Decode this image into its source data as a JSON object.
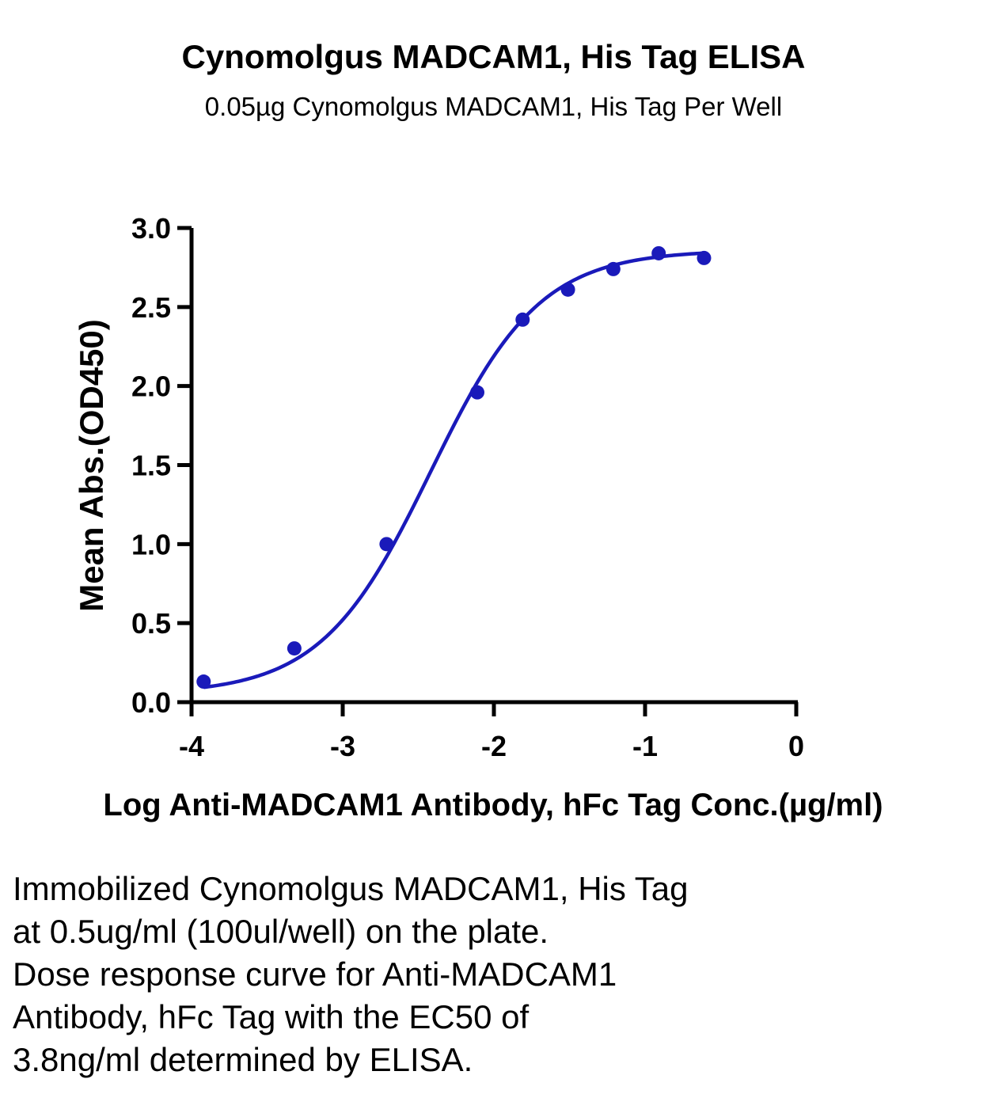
{
  "chart_data": {
    "type": "scatter",
    "title": "Cynomolgus MADCAM1, His Tag ELISA",
    "subtitle": "0.05µg Cynomolgus MADCAM1, His Tag Per Well",
    "xlabel": "Log Anti-MADCAM1 Antibody, hFc Tag Conc.(µg/ml)",
    "ylabel": "Mean Abs.(OD450)",
    "xlim": [
      -4,
      0
    ],
    "ylim": [
      0,
      3
    ],
    "x_ticks": [
      -4,
      -3,
      -2,
      -1,
      0
    ],
    "x_tick_labels": [
      "-4",
      "-3",
      "-2",
      "-1",
      "0"
    ],
    "y_ticks": [
      0,
      0.5,
      1,
      1.5,
      2,
      2.5,
      3
    ],
    "y_tick_labels": [
      "0.0",
      "0.5",
      "1.0",
      "1.5",
      "2.0",
      "2.5",
      "3.0"
    ],
    "grid": false,
    "color": "#1a1aba",
    "series": [
      {
        "x": [
          -3.92,
          -3.32,
          -2.71,
          -2.11,
          -1.81,
          -1.51,
          -1.21,
          -0.91,
          -0.61
        ],
        "y": [
          0.13,
          0.34,
          1.0,
          1.96,
          2.42,
          2.61,
          2.74,
          2.84,
          2.81
        ],
        "fit": {
          "type": "4PL",
          "bottom": 0.05,
          "top": 2.86,
          "log_ec50": -2.42,
          "hill": 1.2
        }
      }
    ]
  },
  "caption": [
    "Immobilized Cynomolgus MADCAM1, His Tag",
    "at 0.5ug/ml (100ul/well) on the plate.",
    "Dose response curve for Anti-MADCAM1",
    "Antibody, hFc Tag with the EC50 of",
    "3.8ng/ml determined by ELISA."
  ]
}
